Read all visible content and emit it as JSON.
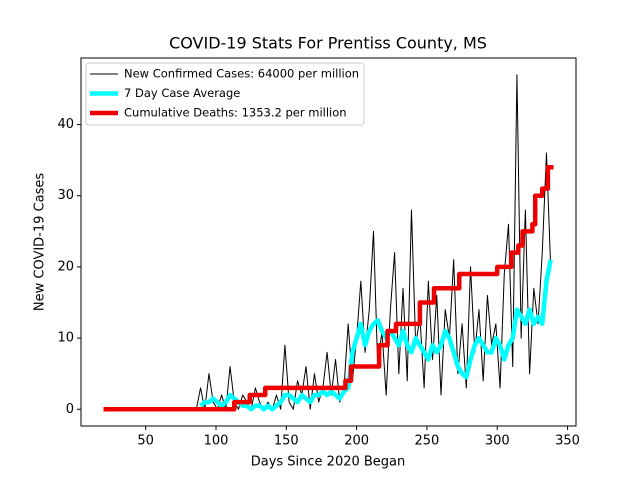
{
  "chart_data": {
    "type": "line",
    "title": "COVID-19 Stats For Prentiss County, MS",
    "xlabel": "Days Since 2020 Began",
    "ylabel": "New COVID-19 Cases",
    "xlim": [
      4,
      356
    ],
    "ylim": [
      -2.35,
      49.35
    ],
    "xticks": [
      50,
      100,
      150,
      200,
      250,
      300,
      350
    ],
    "yticks": [
      0,
      10,
      20,
      30,
      40
    ],
    "legend": "upper left",
    "series": [
      {
        "name": "New Confirmed Cases: 64000 per million",
        "color": "#000000",
        "width": 1,
        "x": [
          20,
          23,
          26,
          29,
          32,
          35,
          38,
          41,
          44,
          47,
          50,
          53,
          56,
          59,
          62,
          65,
          68,
          71,
          74,
          77,
          80,
          83,
          86,
          89,
          92,
          95,
          98,
          101,
          104,
          107,
          110,
          113,
          116,
          119,
          122,
          125,
          128,
          131,
          134,
          137,
          140,
          143,
          146,
          149,
          152,
          155,
          158,
          161,
          164,
          167,
          170,
          173,
          176,
          179,
          182,
          185,
          188,
          191,
          194,
          197,
          200,
          203,
          206,
          209,
          212,
          215,
          218,
          221,
          224,
          227,
          230,
          233,
          236,
          239,
          242,
          245,
          248,
          251,
          254,
          257,
          260,
          263,
          266,
          269,
          272,
          275,
          278,
          281,
          284,
          287,
          290,
          293,
          296,
          299,
          302,
          305,
          308,
          311,
          314,
          317,
          320,
          323,
          326,
          329,
          332,
          335,
          338
        ],
        "values": [
          0,
          0,
          0,
          0,
          0,
          0,
          0,
          0,
          0,
          0,
          0,
          0,
          0,
          0,
          0,
          0,
          0,
          0,
          0,
          0,
          0,
          0,
          0,
          3,
          0,
          5,
          1,
          0,
          2,
          0,
          6,
          1,
          0,
          2,
          1,
          0,
          3,
          1,
          0,
          1,
          0,
          2,
          0,
          9,
          1,
          0,
          4,
          2,
          6,
          0,
          5,
          1,
          3,
          8,
          2,
          7,
          1,
          3,
          12,
          4,
          10,
          18,
          8,
          14,
          25,
          6,
          11,
          2,
          14,
          22,
          5,
          17,
          4,
          28,
          9,
          13,
          3,
          18,
          7,
          16,
          2,
          14,
          10,
          21,
          5,
          12,
          3,
          20,
          8,
          14,
          4,
          16,
          9,
          12,
          3,
          19,
          26,
          6,
          47,
          10,
          28,
          5,
          17,
          12,
          22,
          36,
          20
        ]
      },
      {
        "name": "7 Day Case Average",
        "color": "#00ffff",
        "width": 4.5,
        "x": [
          89,
          92,
          95,
          98,
          101,
          104,
          107,
          110,
          113,
          116,
          119,
          122,
          125,
          128,
          131,
          134,
          137,
          140,
          143,
          146,
          149,
          152,
          155,
          158,
          161,
          164,
          167,
          170,
          173,
          176,
          179,
          182,
          185,
          188,
          191,
          194,
          197,
          200,
          203,
          206,
          209,
          212,
          215,
          218,
          221,
          224,
          227,
          230,
          233,
          236,
          239,
          242,
          245,
          248,
          251,
          254,
          257,
          260,
          263,
          266,
          269,
          272,
          275,
          278,
          281,
          284,
          287,
          290,
          293,
          296,
          299,
          302,
          305,
          308,
          311,
          314,
          317,
          320,
          323,
          326,
          329,
          332,
          335,
          338
        ],
        "values": [
          0.5,
          1,
          1,
          1.5,
          1,
          0.5,
          1,
          2,
          1.5,
          1,
          0.5,
          0.5,
          0,
          0.5,
          0.5,
          0,
          0.5,
          0,
          0.5,
          1,
          2,
          2,
          1.5,
          1,
          2,
          1.5,
          1,
          2,
          2,
          2.5,
          2,
          2.5,
          2,
          1.5,
          2.5,
          3,
          8,
          10,
          12,
          9,
          11,
          12,
          12.5,
          11,
          10,
          11,
          10,
          9,
          11,
          9,
          8,
          10,
          9,
          8,
          7,
          9,
          8,
          9,
          11,
          10,
          8,
          6,
          5,
          4.5,
          7,
          9,
          10,
          9,
          8,
          8,
          10,
          9,
          7,
          9,
          10,
          14,
          13,
          12,
          14,
          12,
          13,
          12,
          18,
          21
        ]
      },
      {
        "name": "Cumulative Deaths: 1353.2 per million",
        "color": "#ee0000",
        "width": 4.5,
        "x": [
          20,
          113,
          113,
          124,
          124,
          135,
          135,
          192,
          192,
          196,
          196,
          216,
          216,
          222,
          222,
          228,
          228,
          245,
          245,
          255,
          255,
          273,
          273,
          300,
          300,
          310,
          310,
          315,
          315,
          318,
          318,
          325,
          325,
          327,
          327,
          332,
          332,
          336,
          336,
          340
        ],
        "values": [
          0,
          0,
          1,
          1,
          2,
          2,
          3,
          3,
          4,
          4,
          6,
          6,
          9,
          9,
          11,
          11,
          12,
          12,
          15,
          15,
          17,
          17,
          19,
          19,
          20,
          20,
          22,
          22,
          23,
          23,
          25,
          25,
          26,
          26,
          30,
          30,
          31,
          31,
          34,
          34
        ]
      }
    ]
  }
}
